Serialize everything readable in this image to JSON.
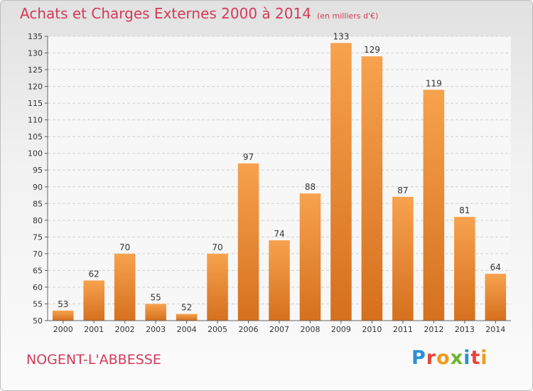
{
  "header": {
    "title": "Achats et Charges Externes 2000 à 2014",
    "unit": "(en milliers d'€)"
  },
  "footer": {
    "city": "NOGENT-L'ABBESSE",
    "logo": "Proxiti"
  },
  "colors": {
    "title": "#d43a5a",
    "bar_light": "#f7a24e",
    "bar_dark": "#d5701e"
  },
  "chart_data": {
    "type": "bar",
    "title": "Achats et Charges Externes 2000 à 2014",
    "subtitle": "(en milliers d'€)",
    "categories": [
      "2000",
      "2001",
      "2002",
      "2003",
      "2004",
      "2005",
      "2006",
      "2007",
      "2008",
      "2009",
      "2010",
      "2011",
      "2012",
      "2013",
      "2014"
    ],
    "values": [
      53,
      62,
      70,
      55,
      52,
      70,
      97,
      74,
      88,
      133,
      129,
      87,
      119,
      81,
      64
    ],
    "ylim": [
      50,
      135
    ],
    "yticks": [
      50,
      55,
      60,
      65,
      70,
      75,
      80,
      85,
      90,
      95,
      100,
      105,
      110,
      115,
      120,
      125,
      130,
      135
    ],
    "grid": true,
    "data_labels": true
  }
}
